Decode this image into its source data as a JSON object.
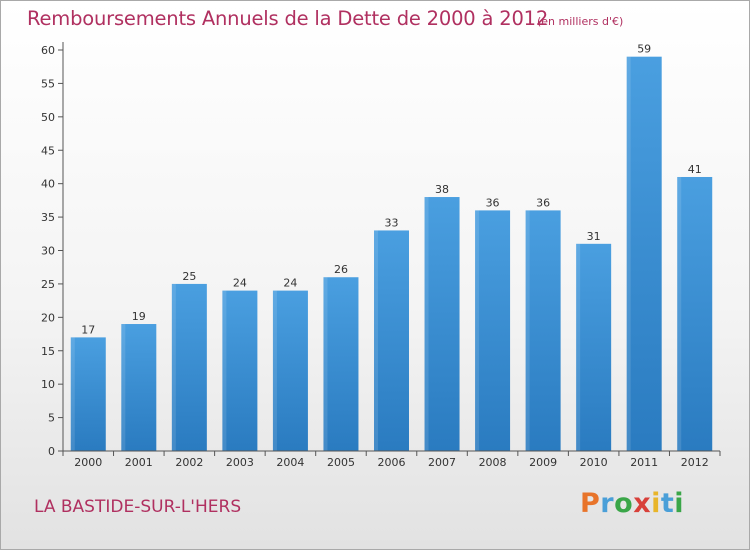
{
  "title": "Remboursements Annuels de la Dette de 2000 à 2012",
  "subtitle": "(en milliers d'€)",
  "commune": "LA BASTIDE-SUR-L'HERS",
  "logo": {
    "letters": [
      "P",
      "r",
      "o",
      "x",
      "i",
      "t",
      "i"
    ],
    "colors": [
      "#e8742a",
      "#4a9fd8",
      "#3aa648",
      "#d8403a",
      "#e8b52a",
      "#4a9fd8",
      "#3aa648"
    ]
  },
  "colors": {
    "bar": "#4a9fe0",
    "bar_dark": "#2a7bc0",
    "axis": "#555555",
    "text": "#333333",
    "title": "#b03060"
  },
  "chart_data": {
    "type": "bar",
    "title": "Remboursements Annuels de la Dette de 2000 à 2012",
    "subtitle": "(en milliers d'€)",
    "xlabel": "",
    "ylabel": "",
    "categories": [
      "2000",
      "2001",
      "2002",
      "2003",
      "2004",
      "2005",
      "2006",
      "2007",
      "2008",
      "2009",
      "2010",
      "2011",
      "2012"
    ],
    "values": [
      17,
      19,
      25,
      24,
      24,
      26,
      33,
      38,
      36,
      36,
      31,
      59,
      41
    ],
    "ylim": [
      0,
      60
    ],
    "yticks": [
      0,
      5,
      10,
      15,
      20,
      25,
      30,
      35,
      40,
      45,
      50,
      55,
      60
    ],
    "grid": false,
    "data_labels": true
  }
}
